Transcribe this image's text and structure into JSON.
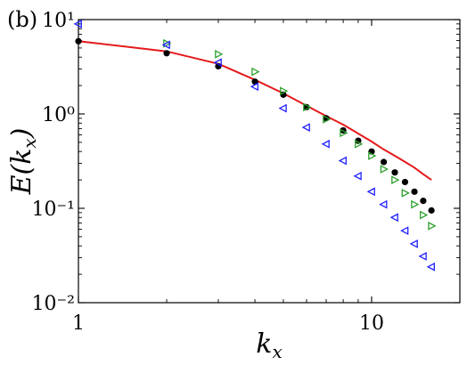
{
  "chart_data": {
    "type": "scatter",
    "panel_label": "(b)",
    "xlabel": "k_x",
    "ylabel": "E(k_x)",
    "xscale": "log",
    "yscale": "log",
    "xlim": [
      1,
      20
    ],
    "ylim": [
      0.01,
      10
    ],
    "x_ticks": [
      {
        "value": 1,
        "label": "1"
      },
      {
        "value": 10,
        "label": "10"
      }
    ],
    "y_ticks": [
      {
        "value": 0.01,
        "label": "10⁻²"
      },
      {
        "value": 0.1,
        "label": "10⁻¹"
      },
      {
        "value": 1,
        "label": "10⁰"
      },
      {
        "value": 10,
        "label": "10¹"
      }
    ],
    "grid": false,
    "series": [
      {
        "marker": "line",
        "color": "#e41a1c",
        "x": [
          1,
          2,
          3,
          4,
          5,
          6,
          7,
          8,
          9,
          10,
          11,
          12,
          13,
          14,
          15,
          16
        ],
        "y": [
          5.9,
          4.6,
          3.4,
          2.3,
          1.65,
          1.22,
          0.95,
          0.77,
          0.62,
          0.51,
          0.42,
          0.36,
          0.31,
          0.27,
          0.23,
          0.2
        ]
      },
      {
        "marker": "dot",
        "color": "#000000",
        "x": [
          1,
          2,
          3,
          4,
          5,
          6,
          7,
          8,
          9,
          10,
          11,
          12,
          13,
          14,
          15,
          16
        ],
        "y": [
          5.9,
          4.4,
          3.2,
          2.2,
          1.6,
          1.18,
          0.9,
          0.67,
          0.52,
          0.4,
          0.31,
          0.24,
          0.19,
          0.15,
          0.12,
          0.095
        ]
      },
      {
        "marker": "triangle-right",
        "color": "#2ca02c",
        "x": [
          2,
          3,
          4,
          5,
          6,
          7,
          8,
          9,
          10,
          11,
          12,
          13,
          14,
          15,
          16
        ],
        "y": [
          5.6,
          4.3,
          2.8,
          1.75,
          1.18,
          0.88,
          0.63,
          0.48,
          0.36,
          0.26,
          0.2,
          0.145,
          0.11,
          0.085,
          0.065
        ]
      },
      {
        "marker": "triangle-left",
        "color": "#1f1fff",
        "x": [
          1,
          2,
          3,
          4,
          5,
          6,
          7,
          8,
          9,
          10,
          11,
          12,
          13,
          14,
          15,
          16
        ],
        "y": [
          9.0,
          5.4,
          3.5,
          1.95,
          1.15,
          0.72,
          0.48,
          0.32,
          0.22,
          0.15,
          0.11,
          0.08,
          0.058,
          0.042,
          0.031,
          0.024
        ]
      }
    ]
  }
}
